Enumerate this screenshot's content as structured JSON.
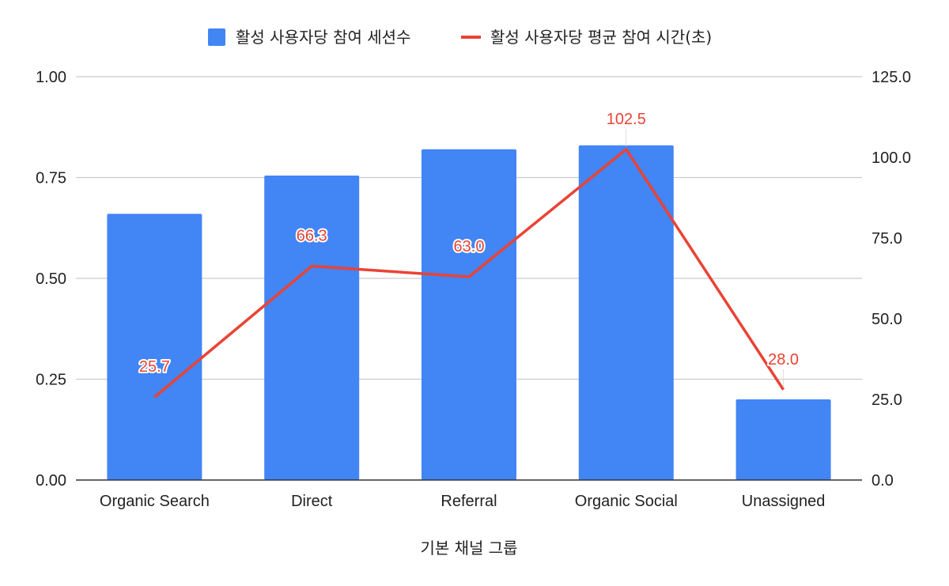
{
  "chart_data": {
    "type": "bar",
    "categories": [
      "Organic Search",
      "Direct",
      "Referral",
      "Organic Social",
      "Unassigned"
    ],
    "xlabel": "기본 채널 그룹",
    "legend_position": "top",
    "grid": true,
    "series": [
      {
        "name": "활성 사용자당 참여 세션수",
        "type": "bar",
        "axis": "left",
        "color": "#4285f4",
        "values": [
          0.66,
          0.755,
          0.82,
          0.83,
          0.2
        ]
      },
      {
        "name": "활성 사용자당 평균 참여 시간(초)",
        "type": "line",
        "axis": "right",
        "color": "#ea4335",
        "values": [
          25.7,
          66.3,
          63.0,
          102.5,
          28.0
        ],
        "labels": [
          "25.7",
          "66.3",
          "63.0",
          "102.5",
          "28.0"
        ]
      }
    ],
    "y_left": {
      "range": [
        0,
        1
      ],
      "ticks": [
        "0.00",
        "0.25",
        "0.50",
        "0.75",
        "1.00"
      ]
    },
    "y_right": {
      "range": [
        0,
        125
      ],
      "ticks": [
        "0.0",
        "25.0",
        "50.0",
        "75.0",
        "100.0",
        "125.0"
      ]
    }
  }
}
